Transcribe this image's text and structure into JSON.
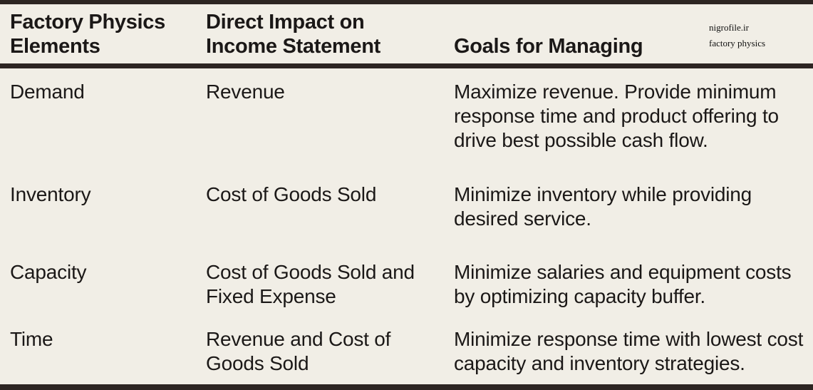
{
  "table": {
    "headers": {
      "col1": "Factory Physics\nElements",
      "col2": "Direct Impact on\nIncome Statement",
      "col3": "Goals for Managing"
    },
    "watermark": "nigrofile.ir\nfactory physics",
    "rows": [
      {
        "element": "Demand",
        "impact": "Revenue",
        "goal": "Maximize revenue. Provide minimum response time and product offering to drive best possible cash flow."
      },
      {
        "element": "Inventory",
        "impact": "Cost of Goods Sold",
        "goal": "Minimize inventory while providing desired service."
      },
      {
        "element": "Capacity",
        "impact": "Cost of Goods Sold and Fixed Expense",
        "goal": "Minimize salaries and equipment costs by optimizing capacity buffer."
      },
      {
        "element": "Time",
        "impact": "Revenue and Cost of Goods Sold",
        "goal": "Minimize response time with lowest cost capacity and inventory strategies."
      }
    ]
  }
}
